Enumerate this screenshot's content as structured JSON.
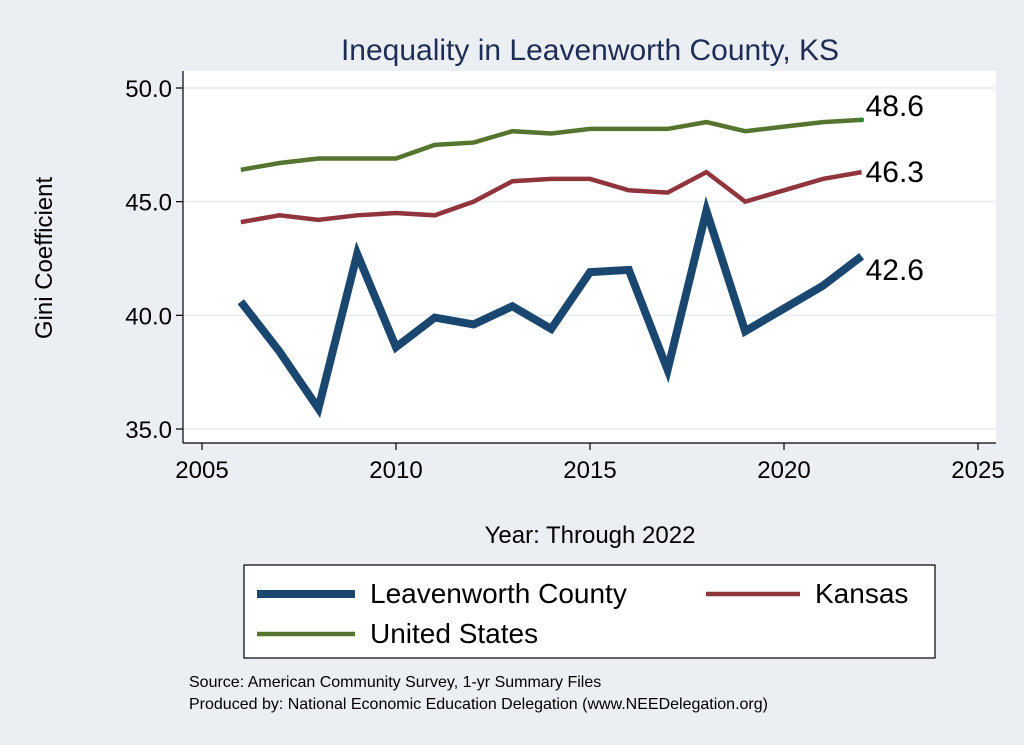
{
  "chart_data": {
    "type": "line",
    "title": "Inequality in Leavenworth County, KS",
    "xlabel": "Year: Through 2022",
    "ylabel": "Gini Coefficient",
    "xlim": [
      2005,
      2025
    ],
    "ylim": [
      35,
      50
    ],
    "xticks": [
      2005,
      2010,
      2015,
      2020,
      2025
    ],
    "yticks": [
      35,
      40,
      45,
      50
    ],
    "ytick_labels": [
      "35.0",
      "40.0",
      "45.0",
      "50.0"
    ],
    "xtick_labels": [
      "2005",
      "2010",
      "2015",
      "2020",
      "2025"
    ],
    "x": [
      2006,
      2007,
      2008,
      2009,
      2010,
      2011,
      2012,
      2013,
      2014,
      2015,
      2016,
      2017,
      2018,
      2019,
      2020,
      2021,
      2022
    ],
    "series": [
      {
        "name": "Leavenworth County",
        "color": "#1a476f",
        "values": [
          40.6,
          38.4,
          35.9,
          42.7,
          38.6,
          39.9,
          39.6,
          40.4,
          39.4,
          41.9,
          42.0,
          37.6,
          44.6,
          39.3,
          40.3,
          41.3,
          42.6
        ],
        "end_label": "42.6"
      },
      {
        "name": "Kansas",
        "color": "#90353b",
        "values": [
          44.1,
          44.4,
          44.2,
          44.4,
          44.5,
          44.4,
          45.0,
          45.9,
          46.0,
          46.0,
          45.5,
          45.4,
          46.3,
          45.0,
          45.5,
          46.0,
          46.3
        ],
        "end_label": "46.3"
      },
      {
        "name": "United States",
        "color": "#55752f",
        "values": [
          46.4,
          46.7,
          46.9,
          46.9,
          46.9,
          47.5,
          47.6,
          48.1,
          48.0,
          48.2,
          48.2,
          48.2,
          48.5,
          48.1,
          48.3,
          48.5,
          48.6
        ],
        "end_label": "48.6"
      }
    ],
    "legend": [
      "Leavenworth County",
      "Kansas",
      "United States"
    ],
    "grid": true,
    "legend_position": "bottom"
  },
  "source_line": "Source: American Community Survey, 1-yr Summary Files",
  "produced_line": "Produced by: National Economic Education Delegation (www.NEEDelegation.org)",
  "colors": {
    "background": "#ebeef2",
    "plot_bg": "#ffffff",
    "title": "#1e2d55",
    "grid": "#e8ecf1"
  }
}
